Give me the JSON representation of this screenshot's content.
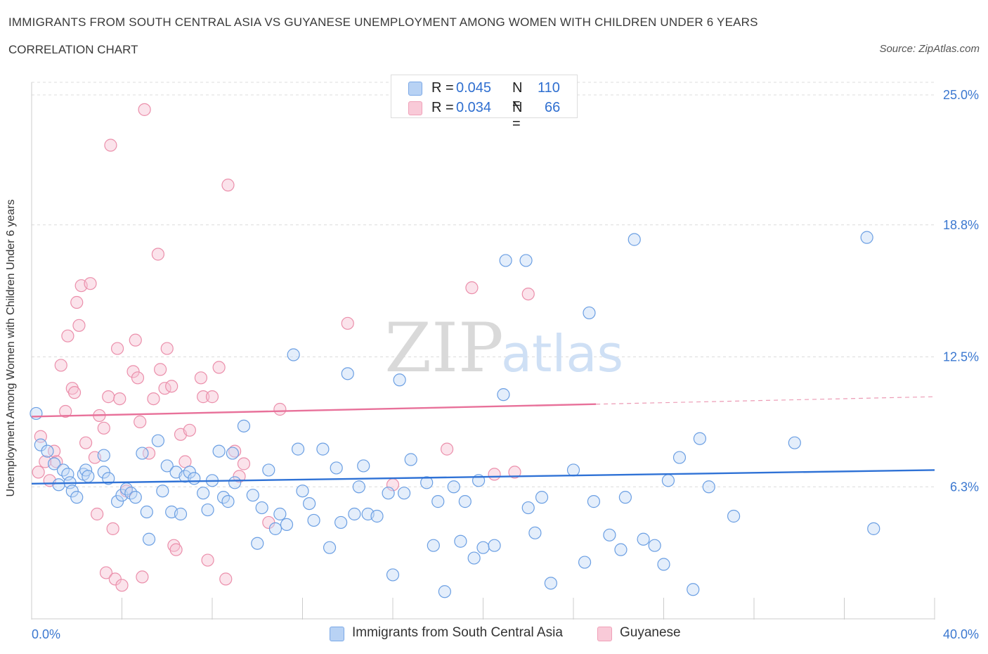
{
  "header": {
    "title": "IMMIGRANTS FROM SOUTH CENTRAL ASIA VS GUYANESE UNEMPLOYMENT AMONG WOMEN WITH CHILDREN UNDER 6 YEARS",
    "subtitle": "CORRELATION CHART",
    "source": "Source: ZipAtlas.com"
  },
  "legend": {
    "rows": [
      {
        "r_label": "R =",
        "r_value": "0.045",
        "n_label": "N =",
        "n_value": "110",
        "color": "#a8c8f0"
      },
      {
        "r_label": "R =",
        "r_value": "0.034",
        "n_label": "N =",
        "n_value": "66",
        "color": "#f5b8cc"
      }
    ]
  },
  "watermark": {
    "zip": "ZIP",
    "atlas": "atlas"
  },
  "chart_data": {
    "type": "scatter",
    "title": "IMMIGRANTS FROM SOUTH CENTRAL ASIA VS GUYANESE UNEMPLOYMENT AMONG WOMEN WITH CHILDREN UNDER 6 YEARS",
    "ylabel": "Unemployment Among Women with Children Under 6 years",
    "xlabel": "",
    "xlim": [
      0,
      40
    ],
    "ylim": [
      0,
      25
    ],
    "x_tick_labels": [
      "0.0%",
      "40.0%"
    ],
    "y_ticks": [
      6.3,
      12.5,
      18.8,
      25.0
    ],
    "y_tick_labels": [
      "6.3%",
      "12.5%",
      "18.8%",
      "25.0%"
    ],
    "grid": true,
    "legend_position": "bottom",
    "series": [
      {
        "name": "Immigrants from South Central Asia",
        "color": "#7aa8e6",
        "trend": {
          "x": [
            0,
            40
          ],
          "y": [
            6.45,
            7.1
          ]
        },
        "points": [
          [
            0.2,
            9.8
          ],
          [
            0.4,
            8.3
          ],
          [
            0.7,
            8.0
          ],
          [
            1.0,
            7.4
          ],
          [
            1.2,
            6.4
          ],
          [
            1.4,
            7.1
          ],
          [
            1.6,
            6.9
          ],
          [
            1.7,
            6.5
          ],
          [
            1.8,
            6.1
          ],
          [
            2.0,
            5.8
          ],
          [
            2.3,
            6.9
          ],
          [
            2.4,
            7.1
          ],
          [
            2.5,
            6.8
          ],
          [
            3.2,
            7.0
          ],
          [
            3.2,
            7.8
          ],
          [
            3.4,
            6.7
          ],
          [
            3.8,
            5.6
          ],
          [
            4.0,
            5.9
          ],
          [
            4.2,
            6.2
          ],
          [
            4.4,
            6.0
          ],
          [
            4.6,
            5.8
          ],
          [
            4.9,
            7.9
          ],
          [
            5.1,
            5.1
          ],
          [
            5.2,
            3.8
          ],
          [
            5.6,
            8.5
          ],
          [
            5.8,
            6.1
          ],
          [
            6.0,
            7.3
          ],
          [
            6.2,
            5.1
          ],
          [
            6.4,
            7.0
          ],
          [
            6.6,
            5.0
          ],
          [
            6.8,
            6.8
          ],
          [
            7.0,
            7.0
          ],
          [
            7.2,
            6.7
          ],
          [
            7.6,
            6.0
          ],
          [
            7.8,
            5.2
          ],
          [
            8.0,
            6.6
          ],
          [
            8.3,
            8.0
          ],
          [
            8.5,
            5.8
          ],
          [
            8.7,
            5.6
          ],
          [
            8.9,
            7.9
          ],
          [
            9.0,
            6.5
          ],
          [
            9.4,
            9.2
          ],
          [
            9.8,
            5.9
          ],
          [
            10.0,
            3.6
          ],
          [
            10.2,
            5.3
          ],
          [
            10.5,
            7.1
          ],
          [
            10.8,
            4.3
          ],
          [
            11.0,
            5.0
          ],
          [
            11.3,
            4.5
          ],
          [
            11.6,
            12.6
          ],
          [
            11.8,
            8.1
          ],
          [
            12.0,
            6.1
          ],
          [
            12.3,
            5.5
          ],
          [
            12.5,
            4.7
          ],
          [
            12.9,
            8.1
          ],
          [
            13.2,
            3.4
          ],
          [
            13.5,
            7.2
          ],
          [
            13.7,
            4.6
          ],
          [
            14.0,
            11.7
          ],
          [
            14.3,
            5.0
          ],
          [
            14.5,
            6.3
          ],
          [
            14.7,
            7.3
          ],
          [
            14.9,
            5.0
          ],
          [
            15.3,
            4.9
          ],
          [
            15.8,
            6.0
          ],
          [
            16.0,
            2.1
          ],
          [
            16.3,
            11.4
          ],
          [
            16.5,
            6.0
          ],
          [
            16.8,
            7.6
          ],
          [
            17.5,
            6.5
          ],
          [
            17.8,
            3.5
          ],
          [
            18.0,
            5.6
          ],
          [
            18.3,
            1.3
          ],
          [
            18.7,
            6.3
          ],
          [
            19.0,
            3.7
          ],
          [
            19.2,
            5.6
          ],
          [
            19.6,
            2.9
          ],
          [
            19.8,
            6.6
          ],
          [
            20.0,
            3.4
          ],
          [
            20.5,
            3.5
          ],
          [
            20.9,
            10.7
          ],
          [
            21.0,
            17.1
          ],
          [
            21.9,
            17.1
          ],
          [
            22.0,
            5.3
          ],
          [
            22.3,
            4.1
          ],
          [
            22.6,
            5.8
          ],
          [
            23.0,
            1.7
          ],
          [
            24.0,
            7.1
          ],
          [
            24.5,
            2.7
          ],
          [
            24.7,
            14.6
          ],
          [
            24.9,
            5.6
          ],
          [
            25.6,
            4.0
          ],
          [
            26.1,
            3.3
          ],
          [
            26.3,
            5.8
          ],
          [
            26.7,
            18.1
          ],
          [
            27.1,
            3.8
          ],
          [
            27.6,
            3.5
          ],
          [
            28.0,
            2.6
          ],
          [
            28.2,
            6.6
          ],
          [
            28.7,
            7.7
          ],
          [
            29.3,
            1.4
          ],
          [
            29.6,
            8.6
          ],
          [
            30.0,
            6.3
          ],
          [
            31.1,
            4.9
          ],
          [
            33.8,
            8.4
          ],
          [
            37.0,
            18.2
          ],
          [
            37.3,
            4.3
          ],
          [
            39.0,
            7.1
          ],
          [
            40.0,
            8.9
          ],
          [
            41.0,
            7.4
          ]
        ]
      },
      {
        "name": "Guyanese",
        "color": "#f0a0b8",
        "trend": {
          "x": [
            0,
            40
          ],
          "y": [
            9.65,
            10.6
          ]
        },
        "trend_dashed_to": {
          "x": [
            40,
            60
          ],
          "y": [
            10.6,
            11.1
          ]
        },
        "points": [
          [
            0.3,
            7.0
          ],
          [
            0.4,
            8.7
          ],
          [
            0.6,
            7.5
          ],
          [
            0.8,
            6.6
          ],
          [
            1.0,
            8.0
          ],
          [
            1.1,
            7.5
          ],
          [
            1.3,
            12.1
          ],
          [
            1.5,
            9.9
          ],
          [
            1.6,
            13.5
          ],
          [
            1.8,
            11.0
          ],
          [
            1.9,
            10.8
          ],
          [
            2.0,
            15.1
          ],
          [
            2.1,
            14.0
          ],
          [
            2.2,
            15.9
          ],
          [
            2.4,
            8.4
          ],
          [
            2.6,
            16.0
          ],
          [
            2.8,
            7.7
          ],
          [
            2.9,
            5.0
          ],
          [
            3.0,
            9.7
          ],
          [
            3.2,
            9.1
          ],
          [
            3.3,
            2.2
          ],
          [
            3.4,
            10.6
          ],
          [
            3.5,
            22.6
          ],
          [
            3.6,
            4.3
          ],
          [
            3.7,
            1.9
          ],
          [
            3.8,
            12.9
          ],
          [
            3.9,
            10.5
          ],
          [
            4.0,
            1.6
          ],
          [
            4.2,
            6.1
          ],
          [
            4.5,
            11.8
          ],
          [
            4.6,
            13.3
          ],
          [
            4.7,
            11.5
          ],
          [
            4.8,
            9.4
          ],
          [
            4.9,
            2.0
          ],
          [
            5.0,
            24.3
          ],
          [
            5.2,
            7.9
          ],
          [
            5.4,
            10.5
          ],
          [
            5.6,
            17.4
          ],
          [
            5.7,
            11.9
          ],
          [
            5.9,
            11.0
          ],
          [
            6.0,
            12.9
          ],
          [
            6.2,
            11.1
          ],
          [
            6.3,
            3.5
          ],
          [
            6.4,
            3.3
          ],
          [
            6.6,
            8.8
          ],
          [
            6.8,
            7.5
          ],
          [
            7.0,
            9.0
          ],
          [
            7.5,
            11.5
          ],
          [
            7.6,
            10.6
          ],
          [
            7.8,
            2.8
          ],
          [
            8.0,
            10.6
          ],
          [
            8.3,
            12.0
          ],
          [
            8.6,
            1.9
          ],
          [
            8.7,
            20.7
          ],
          [
            9.0,
            8.0
          ],
          [
            9.2,
            6.8
          ],
          [
            9.4,
            7.4
          ],
          [
            10.5,
            4.6
          ],
          [
            11.0,
            10.0
          ],
          [
            14.0,
            14.1
          ],
          [
            16.0,
            6.4
          ],
          [
            18.4,
            8.1
          ],
          [
            19.5,
            15.8
          ],
          [
            20.5,
            6.9
          ],
          [
            21.4,
            7.0
          ],
          [
            22.0,
            15.5
          ]
        ]
      }
    ]
  },
  "bottom_legend": {
    "items": [
      {
        "label": "Immigrants from South Central Asia",
        "color": "#a8c8f0"
      },
      {
        "label": "Guyanese",
        "color": "#f5b8cc"
      }
    ]
  }
}
